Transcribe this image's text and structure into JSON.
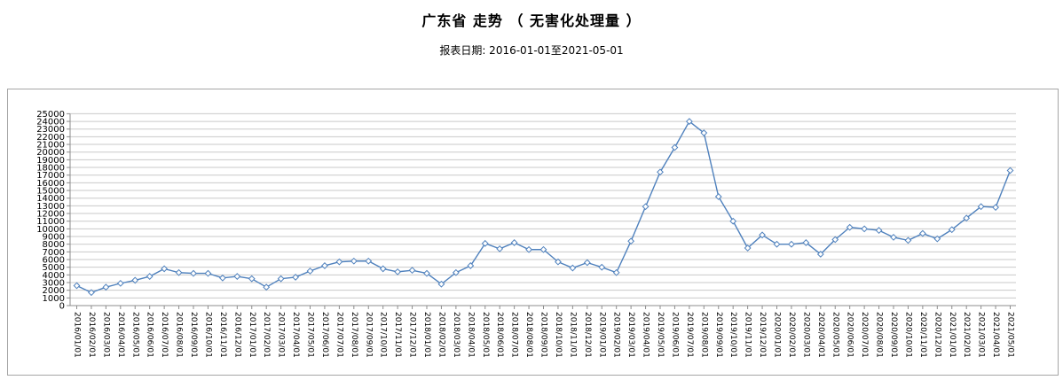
{
  "header": {
    "title": "广东省 走势 （ 无害化处理量 ）",
    "subtitle": "报表日期: 2016-01-01至2021-05-01"
  },
  "colors": {
    "line": "#4f81bd",
    "marker_fill": "#ffffff",
    "gridline": "#c9c9c9",
    "axis": "#8c8c8c",
    "frame_border": "#a6a6a6",
    "label_text": "#000000"
  },
  "chart_data": {
    "type": "line",
    "title": "广东省 走势 （ 无害化处理量 ）",
    "subtitle": "报表日期: 2016-01-01至2021-05-01",
    "xlabel": "",
    "ylabel": "",
    "ylim": [
      0,
      25000
    ],
    "ytick_interval": 1000,
    "grid": true,
    "legend": false,
    "marker": "diamond",
    "x_labels_rotated_90": true,
    "categories": [
      "2016/01/01",
      "2016/02/01",
      "2016/03/01",
      "2016/04/01",
      "2016/05/01",
      "2016/06/01",
      "2016/07/01",
      "2016/08/01",
      "2016/09/01",
      "2016/10/01",
      "2016/11/01",
      "2016/12/01",
      "2017/01/01",
      "2017/02/01",
      "2017/03/01",
      "2017/04/01",
      "2017/05/01",
      "2017/06/01",
      "2017/07/01",
      "2017/08/01",
      "2017/09/01",
      "2017/10/01",
      "2017/11/01",
      "2017/12/01",
      "2018/01/01",
      "2018/02/01",
      "2018/03/01",
      "2018/04/01",
      "2018/05/01",
      "2018/06/01",
      "2018/07/01",
      "2018/08/01",
      "2018/09/01",
      "2018/10/01",
      "2018/11/01",
      "2018/12/01",
      "2019/01/01",
      "2019/02/01",
      "2019/03/01",
      "2019/04/01",
      "2019/05/01",
      "2019/06/01",
      "2019/07/01",
      "2019/08/01",
      "2019/09/01",
      "2019/10/01",
      "2019/11/01",
      "2019/12/01",
      "2020/01/01",
      "2020/02/01",
      "2020/03/01",
      "2020/04/01",
      "2020/05/01",
      "2020/06/01",
      "2020/07/01",
      "2020/08/01",
      "2020/09/01",
      "2020/10/01",
      "2020/11/01",
      "2020/12/01",
      "2021/01/01",
      "2021/02/01",
      "2021/03/01",
      "2021/04/01",
      "2021/05/01"
    ],
    "values": [
      2600,
      1700,
      2400,
      2900,
      3300,
      3800,
      4800,
      4300,
      4200,
      4200,
      3600,
      3800,
      3500,
      2400,
      3500,
      3700,
      4500,
      5200,
      5700,
      5800,
      5800,
      4800,
      4400,
      4600,
      4200,
      2800,
      4300,
      5200,
      8100,
      7400,
      8200,
      7300,
      7300,
      5700,
      4900,
      5600,
      5000,
      4300,
      8400,
      12900,
      17400,
      20600,
      24000,
      22500,
      14200,
      11000,
      7500,
      9200,
      8000,
      8000,
      8200,
      6700,
      8600,
      10200,
      10000,
      9800,
      8900,
      8500,
      9400,
      8700,
      9900,
      11400,
      12900,
      12800,
      17600
    ]
  }
}
